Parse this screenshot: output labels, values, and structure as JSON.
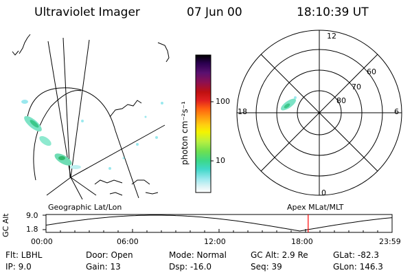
{
  "header": {
    "title": "Ultraviolet Imager",
    "date": "07 Jun 00",
    "time": "18:10:39 UT"
  },
  "colorbar": {
    "label": "photon cm⁻²s⁻¹",
    "ticks": [
      "100",
      "10"
    ],
    "colors": [
      "#000000",
      "#2b0050",
      "#5a1070",
      "#8e1050",
      "#b81010",
      "#e02020",
      "#ff6010",
      "#ff9a10",
      "#ffd010",
      "#f4f400",
      "#b8f040",
      "#6ee050",
      "#3cd88a",
      "#40d8c8",
      "#9ae8ee",
      "#e0f4f6",
      "#ffffff"
    ]
  },
  "polar_plot": {
    "mlt_labels": [
      "12",
      "18",
      "6",
      "0"
    ],
    "lat_labels": [
      "60",
      "70",
      "80"
    ]
  },
  "left_panel": {
    "caption": "Geographic Lat/Lon"
  },
  "right_panel": {
    "caption": "Apex MLat/MLT"
  },
  "orbit_plot": {
    "ylabel": "GC Alt",
    "y_ticks": [
      "9.0",
      "1.8"
    ],
    "x_ticks": [
      "00:00",
      "06:00",
      "12:00",
      "18:00",
      "23:59"
    ],
    "current_time_marker_hours": 18.18,
    "marker_color": "#ff0000"
  },
  "info": {
    "filter": "Flt: LBHL",
    "door": "Door: Open",
    "mode": "Mode: Normal",
    "gc_alt": "GC Alt: 2.9 Re",
    "glat": "GLat: -82.3",
    "ip": "IP: 9.0",
    "gain": "Gain: 13",
    "dsp": "Dsp: -16.0",
    "seq": "Seq: 39",
    "glon": "GLon: 146.3"
  }
}
